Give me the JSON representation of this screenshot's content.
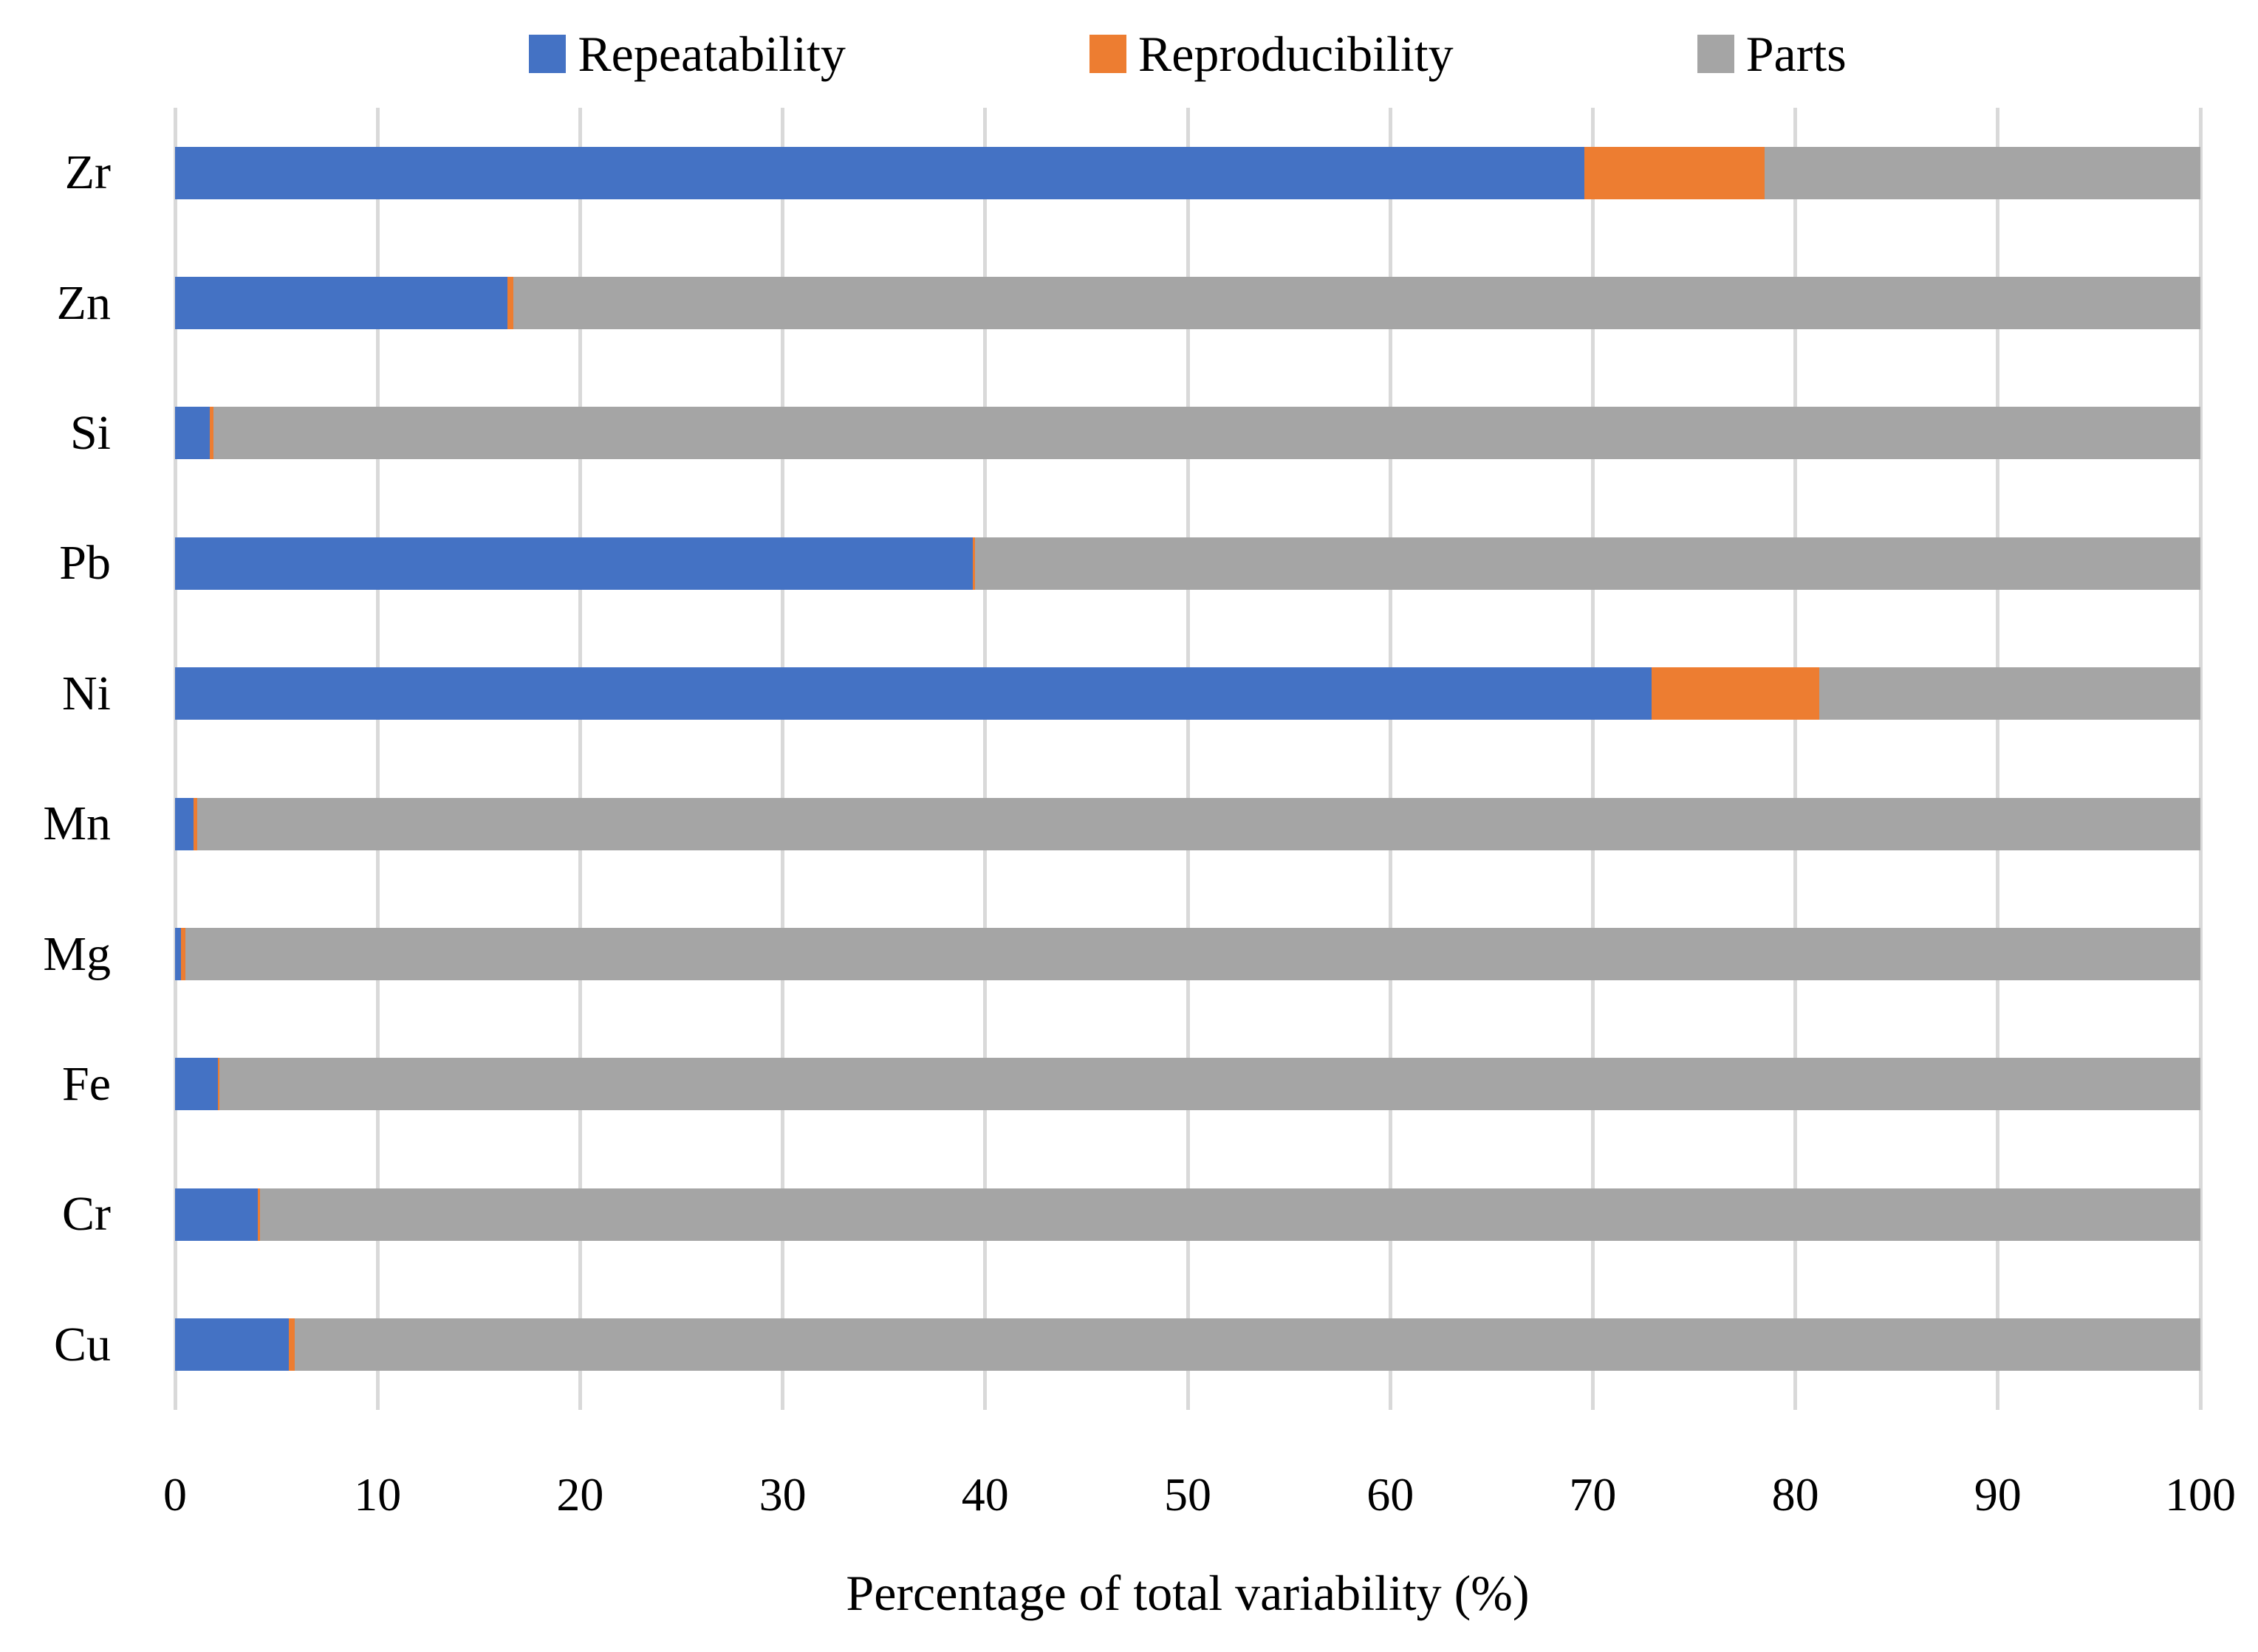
{
  "chart_data": {
    "type": "bar",
    "orientation": "horizontal",
    "stacked": true,
    "title": "",
    "xlabel": "Percentage of total variability (%)",
    "xlim": [
      0,
      100
    ],
    "xticks": [
      0,
      10,
      20,
      30,
      40,
      50,
      60,
      70,
      80,
      90,
      100
    ],
    "grid": true,
    "legend_position": "top",
    "categories": [
      "Zr",
      "Zn",
      "Si",
      "Pb",
      "Ni",
      "Mn",
      "Mg",
      "Fe",
      "Cr",
      "Cu"
    ],
    "series": [
      {
        "name": "Repeatability",
        "color": "#4472C4",
        "values": [
          69.6,
          16.4,
          1.7,
          39.4,
          72.9,
          0.9,
          0.3,
          2.1,
          4.1,
          5.6
        ]
      },
      {
        "name": "Reproducibility",
        "color": "#ED7D31",
        "values": [
          8.9,
          0.3,
          0.2,
          0.1,
          8.3,
          0.2,
          0.2,
          0.1,
          0.1,
          0.3
        ]
      },
      {
        "name": "Parts",
        "color": "#A5A5A5",
        "values": [
          21.5,
          83.3,
          98.1,
          60.5,
          18.8,
          98.9,
          99.5,
          97.8,
          95.8,
          94.1
        ]
      }
    ]
  },
  "colors": {
    "background": "#FFFFFF",
    "gridline": "#D9D9D9",
    "text": "#000000"
  }
}
